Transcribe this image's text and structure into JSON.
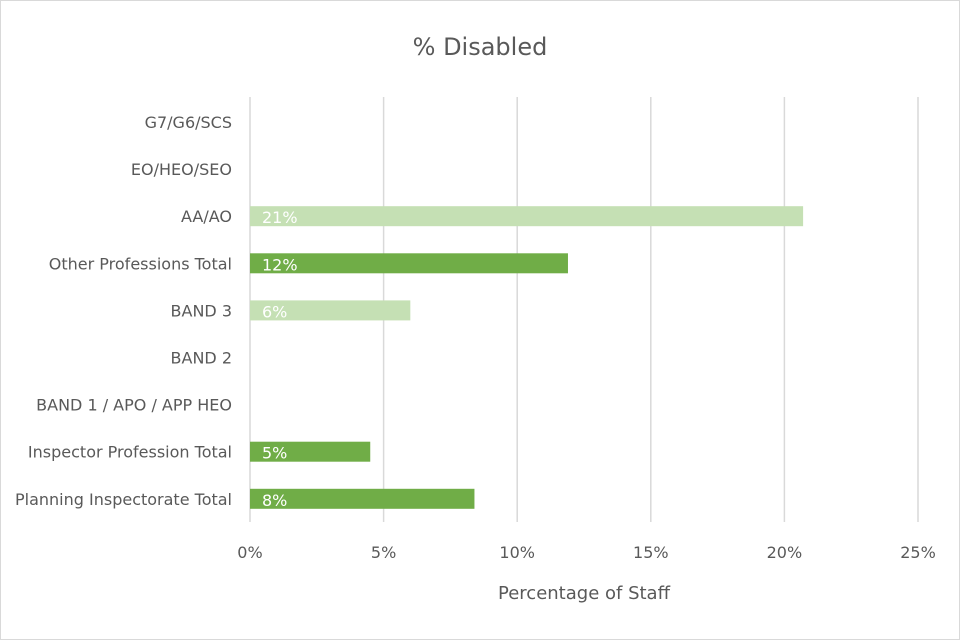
{
  "chart_data": {
    "type": "bar",
    "orientation": "horizontal",
    "title": "% Disabled",
    "xlabel": "Percentage of Staff",
    "ylabel": "",
    "xlim": [
      0,
      25
    ],
    "x_ticks": [
      0,
      5,
      10,
      15,
      20,
      25
    ],
    "x_tick_labels": [
      "0%",
      "5%",
      "10%",
      "15%",
      "20%",
      "25%"
    ],
    "grid": true,
    "legend": "none",
    "categories": [
      "G7/G6/SCS",
      "EO/HEO/SEO",
      "AA/AO",
      "Other Professions Total",
      "BAND 3",
      "BAND 2",
      "BAND 1 / APO / APP HEO",
      "Inspector Profession Total",
      "Planning Inspectorate Total"
    ],
    "values": [
      null,
      null,
      20.7,
      11.9,
      6.0,
      null,
      null,
      4.5,
      8.4
    ],
    "data_labels": [
      "",
      "",
      "21%",
      "12%",
      "6%",
      "",
      "",
      "5%",
      "8%"
    ],
    "bar_styles": [
      "light",
      "light",
      "light",
      "dark",
      "light",
      "light",
      "light",
      "dark",
      "dark"
    ],
    "colors": {
      "light": "#c5e0b4",
      "dark": "#70ad47",
      "grid": "#d9d9d9",
      "text": "#595959"
    }
  }
}
